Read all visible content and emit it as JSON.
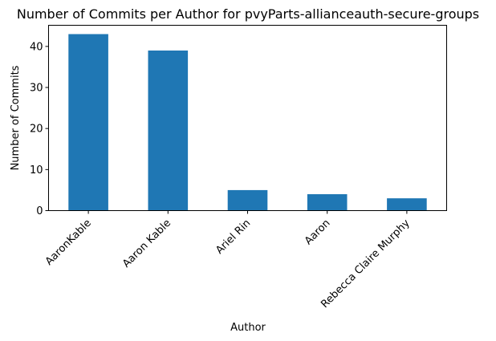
{
  "chart_data": {
    "type": "bar",
    "title": "Number of Commits per Author for pvyParts-allianceauth-secure-groups",
    "xlabel": "Author",
    "ylabel": "Number of Commits",
    "categories": [
      "AaronKable",
      "Aaron Kable",
      "Ariel Rin",
      "Aaron",
      "Rebecca Claire Murphy"
    ],
    "values": [
      43,
      39,
      5,
      4,
      3
    ],
    "ylim": [
      0,
      45.15
    ],
    "yticks": [
      0,
      10,
      20,
      30,
      40
    ],
    "colors": {
      "bar": "#1f77b4"
    },
    "legend": "none",
    "grid": false
  }
}
